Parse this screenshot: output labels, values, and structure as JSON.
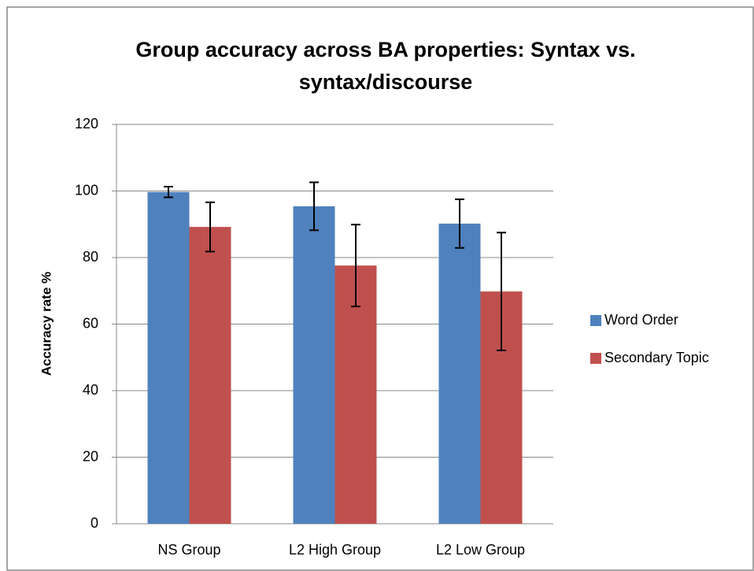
{
  "chart_data": {
    "type": "bar",
    "title": [
      "Group accuracy across BA properties: Syntax vs.",
      "syntax/discourse"
    ],
    "y_label": "Accuracy rate %",
    "categories": [
      "NS Group",
      "L2 High Group",
      "L2 Low Group"
    ],
    "series": [
      {
        "name": "Word Order",
        "color": "#4f81bd",
        "values": [
          99.7,
          95.4,
          90.2
        ],
        "errors": [
          1.6,
          7.2,
          7.3
        ]
      },
      {
        "name": "Secondary Topic",
        "color": "#c0504d",
        "values": [
          89.2,
          77.6,
          69.8
        ],
        "errors": [
          7.4,
          12.3,
          17.7
        ]
      }
    ],
    "ylim": [
      0,
      120
    ],
    "yticks": [
      0,
      20,
      40,
      60,
      80,
      100,
      120
    ],
    "grid": true,
    "legend": "right"
  }
}
